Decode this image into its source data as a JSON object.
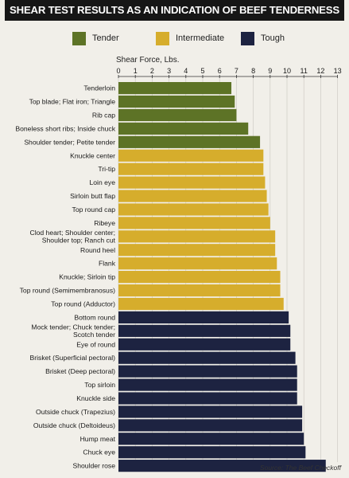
{
  "title": "SHEAR TEST RESULTS AS AN INDICATION OF BEEF TENDERNESS",
  "source": "Source: The Beef Checkoff",
  "legend": [
    {
      "label": "Tender",
      "color": "#5d7326"
    },
    {
      "label": "Intermediate",
      "color": "#d6ad2c"
    },
    {
      "label": "Tough",
      "color": "#1d2341"
    }
  ],
  "chart_data": {
    "type": "bar",
    "orientation": "horizontal",
    "title": "SHEAR TEST RESULTS AS AN INDICATION OF BEEF TENDERNESS",
    "xlabel": "Shear Force, Lbs.",
    "ylabel": "",
    "xlim": [
      0,
      13
    ],
    "xticks": [
      0,
      1,
      2,
      3,
      4,
      5,
      6,
      7,
      8,
      9,
      10,
      11,
      12,
      13
    ],
    "grid": true,
    "legend_position": "top",
    "categories": [
      "Tenderloin",
      "Top blade; Flat iron; Triangle",
      "Rib cap",
      "Boneless short ribs; Inside chuck",
      "Shoulder tender; Petite tender",
      "Knuckle center",
      "Tri-tip",
      "Loin eye",
      "Sirloin butt flap",
      "Top round cap",
      "Ribeye",
      [
        "Clod heart; Shoulder center;",
        "Shoulder top; Ranch cut"
      ],
      "Round heel",
      "Flank",
      "Knuckle; Sirloin tip",
      "Top round (Semimembranosus)",
      "Top round (Adductor)",
      "Bottom round",
      [
        "Mock tender; Chuck tender;",
        "Scotch tender"
      ],
      "Eye of round",
      "Brisket (Superficial pectoral)",
      "Brisket (Deep pectoral)",
      "Top sirloin",
      "Knuckle side",
      "Outside chuck (Trapezius)",
      "Outside chuck (Deltoideus)",
      "Hump meat",
      "Chuck eye",
      "Shoulder rose"
    ],
    "values": [
      6.7,
      6.9,
      7.0,
      7.7,
      8.4,
      8.6,
      8.6,
      8.7,
      8.8,
      8.9,
      9.0,
      9.3,
      9.3,
      9.4,
      9.6,
      9.6,
      9.8,
      10.1,
      10.2,
      10.2,
      10.5,
      10.6,
      10.6,
      10.6,
      10.9,
      10.9,
      11.0,
      11.1,
      12.3
    ],
    "groups": [
      "Tender",
      "Tender",
      "Tender",
      "Tender",
      "Tender",
      "Intermediate",
      "Intermediate",
      "Intermediate",
      "Intermediate",
      "Intermediate",
      "Intermediate",
      "Intermediate",
      "Intermediate",
      "Intermediate",
      "Intermediate",
      "Intermediate",
      "Intermediate",
      "Tough",
      "Tough",
      "Tough",
      "Tough",
      "Tough",
      "Tough",
      "Tough",
      "Tough",
      "Tough",
      "Tough",
      "Tough",
      "Tough"
    ]
  }
}
